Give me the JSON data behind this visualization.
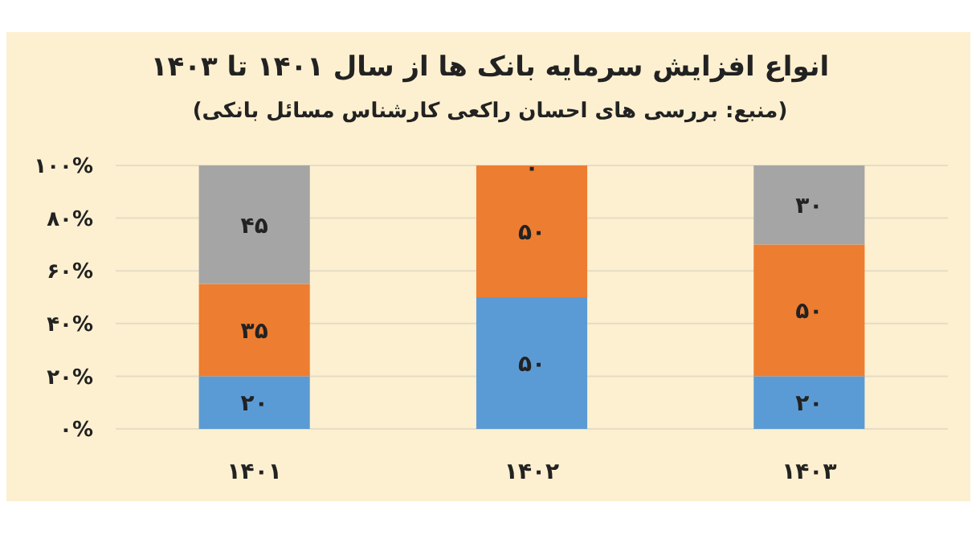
{
  "chart_data": {
    "type": "bar",
    "stacked": true,
    "title": "انواع افزایش سرمایه بانک ها از سال ۱۴۰۱ تا ۱۴۰۳",
    "subtitle": "(منبع: بررسی های احسان راکعی کارشناس مسائل بانکی)",
    "categories": [
      "۱۴۰۱",
      "۱۴۰۲",
      "۱۴۰۳"
    ],
    "series": [
      {
        "color": "#5b9bd5",
        "values": [
          20,
          50,
          20
        ],
        "value_labels": [
          "۲۰",
          "۵۰",
          "۲۰"
        ]
      },
      {
        "color": "#ed7d31",
        "values": [
          35,
          50,
          50
        ],
        "value_labels": [
          "۳۵",
          "۵۰",
          "۵۰"
        ]
      },
      {
        "color": "#a5a5a5",
        "values": [
          45,
          0,
          30
        ],
        "value_labels": [
          "۴۵",
          "۰",
          "۳۰"
        ]
      }
    ],
    "ylim": [
      0,
      100
    ],
    "yticks": [
      {
        "value": 0,
        "label": "۰%"
      },
      {
        "value": 20,
        "label": "۲۰%"
      },
      {
        "value": 40,
        "label": "۴۰%"
      },
      {
        "value": 60,
        "label": "۶۰%"
      },
      {
        "value": 80,
        "label": "۸۰%"
      },
      {
        "value": 100,
        "label": "۱۰۰%"
      }
    ],
    "grid": "y"
  }
}
